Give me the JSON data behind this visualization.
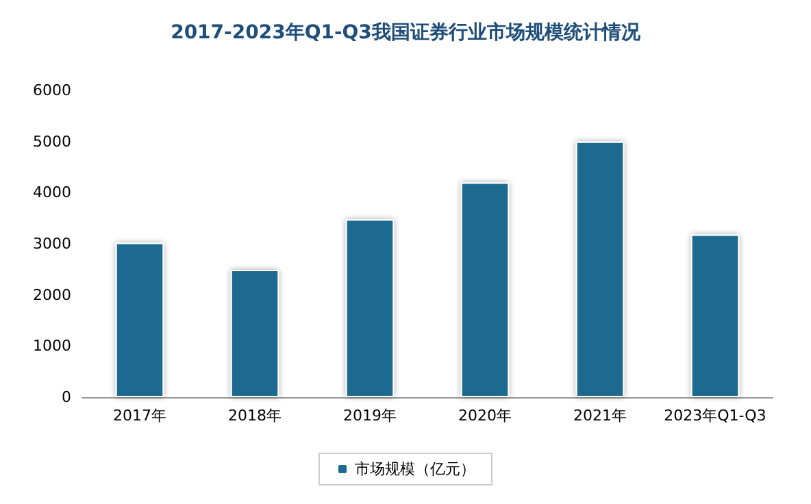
{
  "chart_data": {
    "type": "bar",
    "title": "2017-2023年Q1-Q3我国证券行业市场规模统计情况",
    "categories": [
      "2017年",
      "2018年",
      "2019年",
      "2020年",
      "2021年",
      "2023年Q1-Q3"
    ],
    "series": [
      {
        "name": "市场规模（亿元）",
        "color": "#1b6a8f",
        "values": [
          3020,
          2490,
          3480,
          4200,
          5000,
          3180
        ]
      }
    ],
    "ylim": [
      0,
      6000
    ],
    "yticks": [
      0,
      1000,
      2000,
      3000,
      4000,
      5000,
      6000
    ],
    "grid": false,
    "legend": "bottom"
  }
}
